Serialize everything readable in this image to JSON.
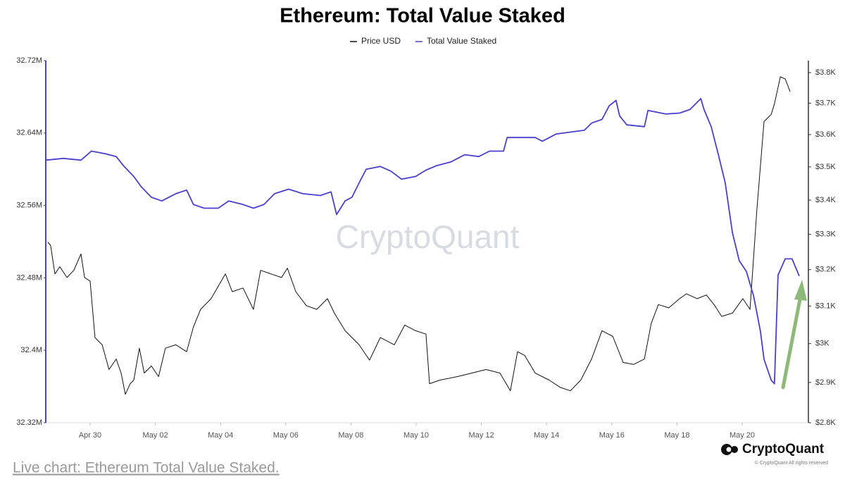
{
  "chart_data": {
    "type": "line",
    "title": "Ethereum: Total Value Staked",
    "watermark": "CryptoQuant",
    "brand": "CryptoQuant",
    "copyright": "© CryptoQuant All rights reserved",
    "caption": "Live chart: Ethereum Total Value Staked.",
    "xlim": [
      -1.36,
      22.03
    ],
    "xticks": [
      {
        "value": 0,
        "label": "Apr 30"
      },
      {
        "value": 2,
        "label": "May 02"
      },
      {
        "value": 4,
        "label": "May 04"
      },
      {
        "value": 6,
        "label": "May 06"
      },
      {
        "value": 8,
        "label": "May 08"
      },
      {
        "value": 10,
        "label": "May 10"
      },
      {
        "value": 12,
        "label": "May 12"
      },
      {
        "value": 14,
        "label": "May 14"
      },
      {
        "value": 16,
        "label": "May 16"
      },
      {
        "value": 18,
        "label": "May 18"
      },
      {
        "value": 20,
        "label": "May 20"
      }
    ],
    "ylim": [
      32.32,
      32.72
    ],
    "yticks": [
      {
        "value": 32.32,
        "label": "32.32M"
      },
      {
        "value": 32.4,
        "label": "32.4M"
      },
      {
        "value": 32.48,
        "label": "32.48M"
      },
      {
        "value": 32.56,
        "label": "32.56M"
      },
      {
        "value": 32.64,
        "label": "32.64M"
      },
      {
        "value": 32.72,
        "label": "32.72M"
      }
    ],
    "y2lim": [
      2800,
      3840
    ],
    "y2log": true,
    "y2ticks": [
      {
        "value": 2800,
        "label": "$2.8K"
      },
      {
        "value": 2900,
        "label": "$2.9K"
      },
      {
        "value": 3000,
        "label": "$3K"
      },
      {
        "value": 3100,
        "label": "$3.1K"
      },
      {
        "value": 3200,
        "label": "$3.2K"
      },
      {
        "value": 3300,
        "label": "$3.3K"
      },
      {
        "value": 3400,
        "label": "$3.4K"
      },
      {
        "value": 3500,
        "label": "$3.5K"
      },
      {
        "value": 3600,
        "label": "$3.6K"
      },
      {
        "value": 3700,
        "label": "$3.7K"
      },
      {
        "value": 3800,
        "label": "$3.8K"
      }
    ],
    "series": [
      {
        "name": "Price USD",
        "color": "#111111",
        "axis": "y2",
        "x": [
          -1.3,
          -1.21,
          -1.08,
          -0.93,
          -0.71,
          -0.5,
          -0.28,
          -0.17,
          0,
          0.15,
          0.37,
          0.58,
          0.8,
          0.95,
          1.08,
          1.23,
          1.34,
          1.51,
          1.66,
          1.88,
          2.1,
          2.31,
          2.63,
          2.96,
          3.17,
          3.39,
          3.71,
          4.15,
          4.36,
          4.69,
          5.01,
          5.23,
          5.55,
          5.87,
          6.05,
          6.31,
          6.63,
          6.95,
          7.28,
          7.49,
          7.82,
          8.25,
          8.57,
          8.9,
          9.33,
          9.65,
          9.98,
          10.3,
          10.41,
          10.73,
          11.27,
          11.71,
          12.14,
          12.57,
          12.89,
          13.11,
          13.33,
          13.65,
          14.08,
          14.41,
          14.73,
          15.05,
          15.38,
          15.7,
          16.03,
          16.35,
          16.67,
          17.0,
          17.21,
          17.43,
          17.75,
          18.08,
          18.29,
          18.62,
          18.9,
          19.16,
          19.37,
          19.7,
          20.02,
          20.24,
          20.45,
          20.67,
          20.89,
          20.99,
          21.17,
          21.32,
          21.47
        ],
        "values": [
          3278,
          3268,
          3188,
          3208,
          3178,
          3198,
          3244,
          3178,
          3168,
          3016,
          2997,
          2933,
          2960,
          2924,
          2870,
          2897,
          2906,
          2988,
          2924,
          2942,
          2915,
          2988,
          2997,
          2979,
          3044,
          3091,
          3120,
          3188,
          3139,
          3149,
          3091,
          3198,
          3188,
          3178,
          3204,
          3139,
          3101,
          3091,
          3120,
          3081,
          3034,
          2997,
          2957,
          3016,
          2997,
          3049,
          3034,
          3025,
          2897,
          2906,
          2915,
          2924,
          2933,
          2924,
          2879,
          2979,
          2969,
          2924,
          2906,
          2888,
          2879,
          2906,
          2960,
          3034,
          3019,
          2951,
          2946,
          2960,
          3053,
          3104,
          3095,
          3120,
          3133,
          3120,
          3130,
          3101,
          3072,
          3081,
          3120,
          3091,
          3370,
          3641,
          3664,
          3698,
          3786,
          3779,
          3737
        ]
      },
      {
        "name": "Total Value Staked",
        "color": "#4a3fcf",
        "x": [
          -1.36,
          -0.82,
          -0.28,
          0.04,
          0.48,
          0.8,
          1.02,
          1.34,
          1.56,
          1.88,
          2.2,
          2.63,
          2.96,
          3.17,
          3.5,
          3.93,
          4.25,
          4.69,
          5.01,
          5.33,
          5.66,
          6.09,
          6.52,
          7.06,
          7.39,
          7.56,
          7.82,
          8.03,
          8.25,
          8.47,
          8.9,
          9.22,
          9.55,
          9.98,
          10.3,
          10.63,
          11.06,
          11.49,
          11.92,
          12.25,
          12.68,
          12.79,
          13.22,
          13.65,
          13.87,
          14.3,
          14.73,
          15.16,
          15.38,
          15.7,
          15.92,
          16.13,
          16.24,
          16.46,
          17.0,
          17.11,
          17.65,
          18.08,
          18.4,
          18.73,
          18.83,
          19.05,
          19.27,
          19.48,
          19.7,
          19.91,
          20.13,
          20.35,
          20.56,
          20.67,
          20.89,
          20.99,
          21.1,
          21.32,
          21.53,
          21.75
        ],
        "values": [
          32.61,
          32.612,
          32.61,
          32.62,
          32.617,
          32.614,
          32.604,
          32.592,
          32.581,
          32.569,
          32.565,
          32.573,
          32.577,
          32.561,
          32.557,
          32.557,
          32.565,
          32.561,
          32.557,
          32.561,
          32.573,
          32.578,
          32.573,
          32.571,
          32.575,
          32.55,
          32.565,
          32.569,
          32.585,
          32.6,
          32.603,
          32.598,
          32.589,
          32.592,
          32.599,
          32.604,
          32.608,
          32.616,
          32.614,
          32.62,
          32.62,
          32.635,
          32.635,
          32.635,
          32.631,
          32.639,
          32.641,
          32.643,
          32.651,
          32.655,
          32.67,
          32.676,
          32.659,
          32.649,
          32.647,
          32.665,
          32.661,
          32.662,
          32.666,
          32.678,
          32.666,
          32.647,
          32.616,
          32.585,
          32.53,
          32.499,
          32.487,
          32.46,
          32.421,
          32.39,
          32.367,
          32.363,
          32.483,
          32.501,
          32.501,
          32.482
        ]
      }
    ]
  }
}
